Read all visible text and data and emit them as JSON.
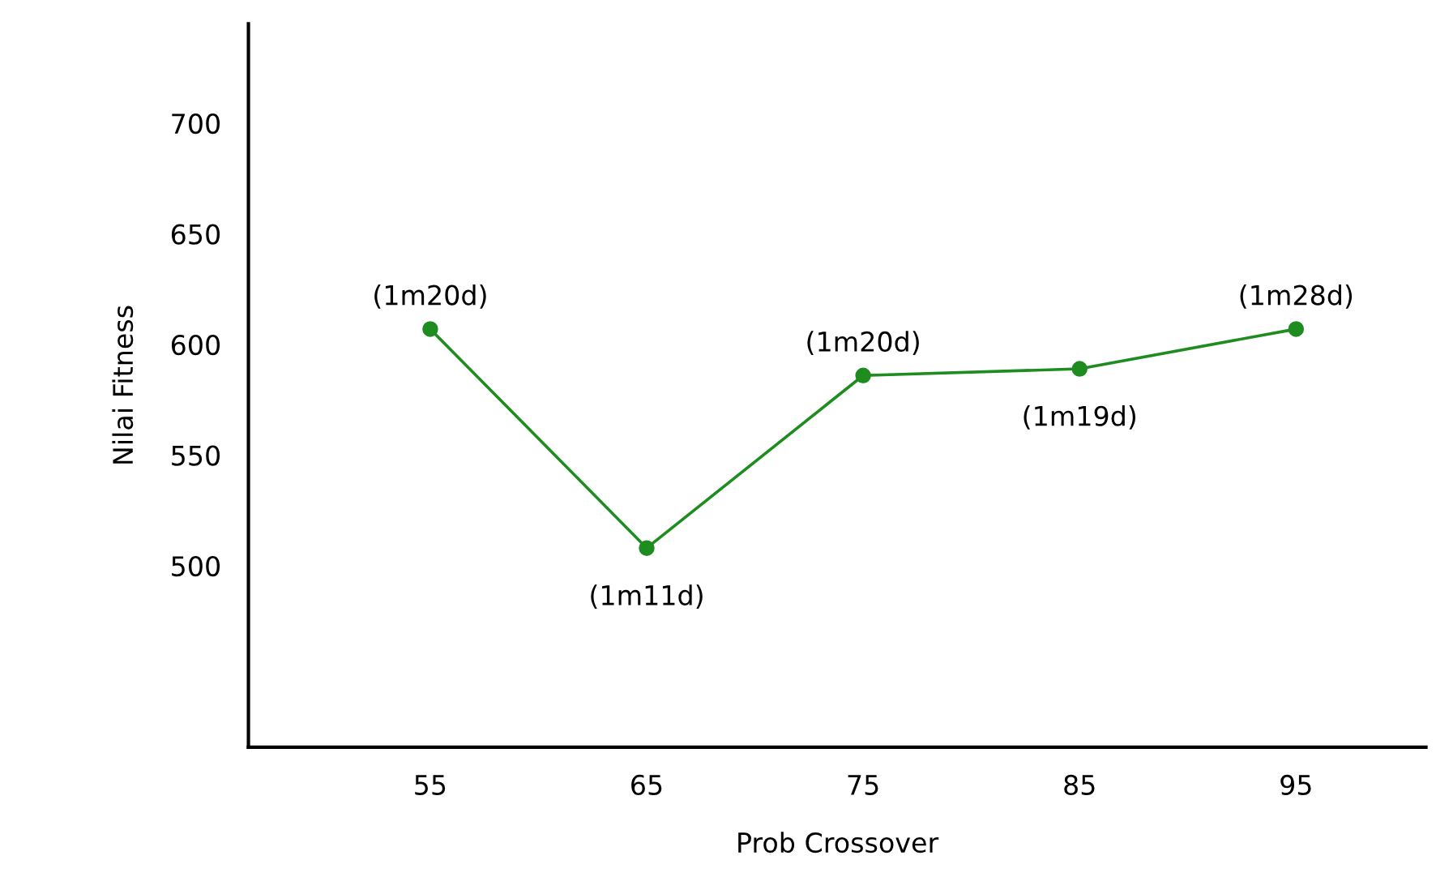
{
  "chart_data": {
    "type": "line",
    "xlabel": "Prob Crossover",
    "ylabel": "Nilai Fitness",
    "x": [
      55,
      65,
      75,
      85,
      95
    ],
    "series": [
      {
        "color": "#1e8c1e",
        "values": [
          607,
          508,
          586,
          589,
          607
        ]
      }
    ],
    "xlim": [
      46.6,
      101
    ],
    "ylim": [
      418,
      745
    ],
    "xticks": [
      55,
      65,
      75,
      85,
      95
    ],
    "yticks": [
      500,
      550,
      600,
      650,
      700
    ],
    "marker": "circle",
    "line_style": "solid",
    "grid": false,
    "legend": false,
    "annotations": [
      {
        "text": "(1m20d)",
        "x": 55,
        "y": 607
      },
      {
        "text": "(1m11d)",
        "x": 65,
        "y": 508
      },
      {
        "text": "(1m20d)",
        "x": 75,
        "y": 586
      },
      {
        "text": "(1m19d)",
        "x": 85,
        "y": 589
      },
      {
        "text": "(1m28d)",
        "x": 95,
        "y": 607
      }
    ]
  }
}
